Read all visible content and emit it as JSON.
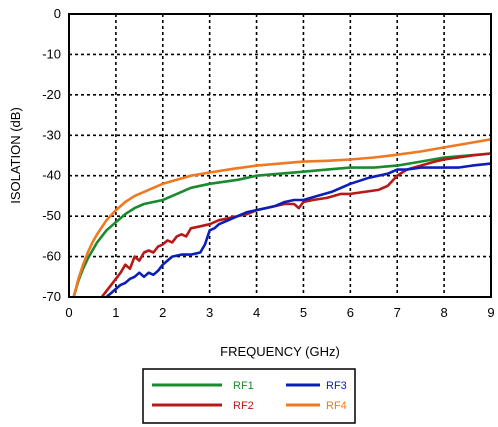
{
  "chart_data": {
    "type": "line",
    "title": "",
    "xlabel": "FREQUENCY (GHz)",
    "ylabel": "ISOLATION  (dB)",
    "xlim": [
      0,
      9
    ],
    "ylim": [
      -70,
      0
    ],
    "xticks": [
      "0",
      "1",
      "2",
      "3",
      "4",
      "5",
      "6",
      "7",
      "8",
      "9"
    ],
    "yticks": [
      "0",
      "-10",
      "-20",
      "-30",
      "-40",
      "-50",
      "-60",
      "-70"
    ],
    "grid": "dotted",
    "legend_position": "bottom-center",
    "series": [
      {
        "name": "RF1",
        "color": "#1a8a2e",
        "x": [
          0.1,
          0.2,
          0.3,
          0.4,
          0.5,
          0.6,
          0.8,
          1.0,
          1.2,
          1.4,
          1.6,
          1.8,
          2.0,
          2.2,
          2.4,
          2.6,
          2.8,
          3.0,
          3.3,
          3.6,
          4.0,
          4.5,
          5.0,
          5.5,
          6.0,
          6.5,
          7.0,
          7.5,
          8.0,
          8.5,
          9.0
        ],
        "y": [
          -70,
          -66,
          -63,
          -60.5,
          -58.5,
          -56.5,
          -53.5,
          -51.5,
          -49.5,
          -48,
          -47,
          -46.5,
          -46,
          -45,
          -44,
          -43,
          -42.5,
          -42,
          -41.5,
          -41,
          -40,
          -39.5,
          -39,
          -38.5,
          -38,
          -38,
          -37.5,
          -36.5,
          -35.5,
          -35,
          -34.5
        ]
      },
      {
        "name": "RF2",
        "color": "#b81818",
        "x": [
          0.7,
          0.8,
          0.9,
          1.0,
          1.1,
          1.2,
          1.3,
          1.4,
          1.5,
          1.6,
          1.7,
          1.8,
          1.9,
          2.0,
          2.1,
          2.2,
          2.3,
          2.4,
          2.5,
          2.6,
          2.8,
          3.0,
          3.2,
          3.4,
          3.6,
          3.8,
          4.0,
          4.2,
          4.4,
          4.6,
          4.8,
          4.9,
          5.0,
          5.2,
          5.5,
          5.8,
          6.0,
          6.3,
          6.6,
          6.8,
          7.0,
          7.2,
          7.5,
          7.8,
          8.0,
          8.3,
          8.6,
          9.0
        ],
        "y": [
          -70,
          -68.5,
          -67,
          -65.5,
          -64,
          -62,
          -63,
          -60,
          -61,
          -59,
          -58.5,
          -59,
          -57.5,
          -57,
          -56,
          -56.5,
          -55,
          -54.5,
          -55,
          -53,
          -52.5,
          -52,
          -51,
          -50.5,
          -50,
          -49.5,
          -48.5,
          -48,
          -47.5,
          -47,
          -47,
          -48,
          -46.5,
          -46,
          -45.5,
          -44.5,
          -44.5,
          -44,
          -43.5,
          -42.5,
          -40,
          -38.5,
          -37.5,
          -36.5,
          -36,
          -35.5,
          -35,
          -34.5
        ]
      },
      {
        "name": "RF3",
        "color": "#0a1fb8",
        "x": [
          0.8,
          0.9,
          1.0,
          1.1,
          1.2,
          1.3,
          1.4,
          1.5,
          1.6,
          1.7,
          1.8,
          1.9,
          2.0,
          2.1,
          2.2,
          2.4,
          2.6,
          2.8,
          2.9,
          3.0,
          3.1,
          3.2,
          3.4,
          3.6,
          3.8,
          4.0,
          4.2,
          4.4,
          4.6,
          4.8,
          5.0,
          5.3,
          5.6,
          6.0,
          6.4,
          6.8,
          7.0,
          7.2,
          7.5,
          7.8,
          8.0,
          8.3,
          8.6,
          9.0
        ],
        "y": [
          -70,
          -69,
          -68,
          -67,
          -66.5,
          -65.5,
          -65,
          -64,
          -65,
          -64,
          -64.5,
          -63.5,
          -62,
          -61,
          -60,
          -59.5,
          -59.5,
          -59,
          -57,
          -53.5,
          -53,
          -52,
          -51,
          -50,
          -49,
          -48.5,
          -48,
          -47.5,
          -46.5,
          -46,
          -46,
          -45,
          -44,
          -42,
          -40.5,
          -39.5,
          -38.5,
          -38.5,
          -38,
          -38,
          -38,
          -38,
          -37.5,
          -37
        ]
      },
      {
        "name": "RF4",
        "color": "#f07820",
        "x": [
          0.1,
          0.2,
          0.3,
          0.4,
          0.5,
          0.6,
          0.8,
          1.0,
          1.2,
          1.4,
          1.6,
          1.8,
          2.0,
          2.3,
          2.6,
          3.0,
          3.5,
          4.0,
          4.5,
          5.0,
          5.5,
          6.0,
          6.5,
          7.0,
          7.5,
          8.0,
          8.5,
          9.0
        ],
        "y": [
          -70,
          -65.5,
          -62,
          -59,
          -56.5,
          -54.5,
          -51,
          -48.5,
          -46.5,
          -45,
          -44,
          -43,
          -42,
          -41,
          -40,
          -39.2,
          -38.3,
          -37.5,
          -37,
          -36.5,
          -36.3,
          -36,
          -35.5,
          -34.8,
          -34,
          -33,
          -32,
          -31
        ]
      }
    ]
  }
}
